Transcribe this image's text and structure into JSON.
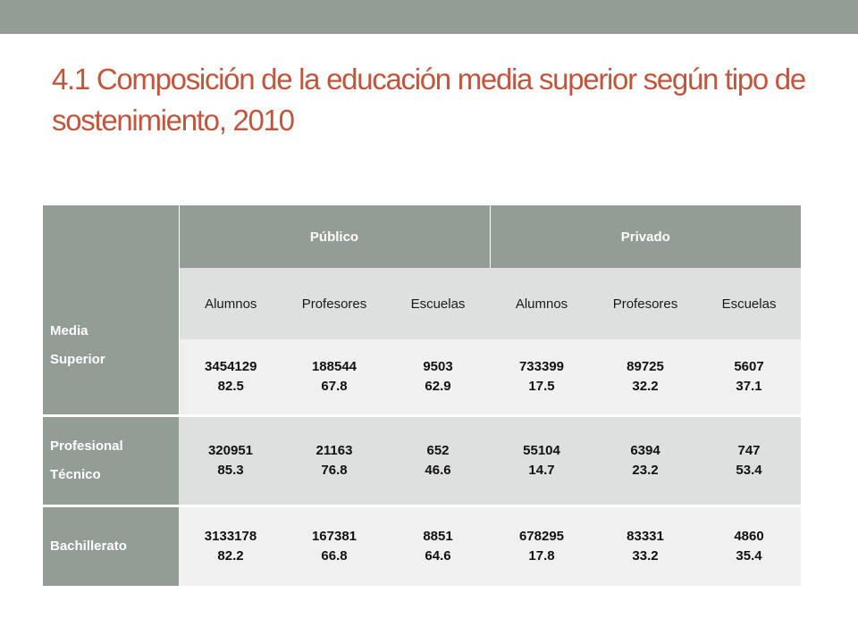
{
  "title": "4.1 Composición de la educación media superior según tipo de sostenimiento, 2010",
  "table": {
    "corner_label_line1": "Media",
    "corner_label_line2": "Superior",
    "groups": [
      "Público",
      "Privado"
    ],
    "subheaders": [
      "Alumnos",
      "Profesores",
      "Escuelas",
      "Alumnos",
      "Profesores",
      "Escuelas"
    ],
    "rows": [
      {
        "label_line1": "",
        "label_line2": "",
        "cells": [
          {
            "value": "3454129",
            "percent": "82.5"
          },
          {
            "value": "188544",
            "percent": "67.8"
          },
          {
            "value": "9503",
            "percent": "62.9"
          },
          {
            "value": "733399",
            "percent": "17.5"
          },
          {
            "value": "89725",
            "percent": "32.2"
          },
          {
            "value": "5607",
            "percent": "37.1"
          }
        ]
      },
      {
        "label_line1": "Profesional",
        "label_line2": "Técnico",
        "cells": [
          {
            "value": "320951",
            "percent": "85.3"
          },
          {
            "value": "21163",
            "percent": "76.8"
          },
          {
            "value": "652",
            "percent": "46.6"
          },
          {
            "value": "55104",
            "percent": "14.7"
          },
          {
            "value": "6394",
            "percent": "23.2"
          },
          {
            "value": "747",
            "percent": "53.4"
          }
        ]
      },
      {
        "label_line1": "Bachillerato",
        "label_line2": "",
        "cells": [
          {
            "value": "3133178",
            "percent": "82.2"
          },
          {
            "value": "167381",
            "percent": "66.8"
          },
          {
            "value": "8851",
            "percent": "64.6"
          },
          {
            "value": "678295",
            "percent": "17.8"
          },
          {
            "value": "83331",
            "percent": "33.2"
          },
          {
            "value": "4860",
            "percent": "35.4"
          }
        ]
      }
    ]
  },
  "colors": {
    "accent_band": "#929e94",
    "title_text": "#c0563e",
    "row_light": "#eff0ef",
    "row_dark": "#dde0de"
  }
}
